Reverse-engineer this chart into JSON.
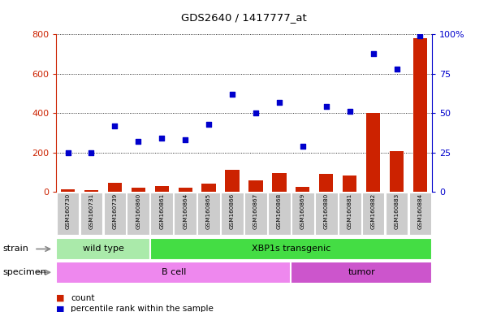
{
  "title": "GDS2640 / 1417777_at",
  "samples": [
    "GSM160730",
    "GSM160731",
    "GSM160739",
    "GSM160860",
    "GSM160861",
    "GSM160864",
    "GSM160865",
    "GSM160866",
    "GSM160867",
    "GSM160868",
    "GSM160869",
    "GSM160880",
    "GSM160881",
    "GSM160882",
    "GSM160883",
    "GSM160884"
  ],
  "counts": [
    15,
    10,
    45,
    20,
    30,
    20,
    40,
    110,
    60,
    95,
    25,
    90,
    85,
    400,
    205,
    780
  ],
  "percentiles": [
    25,
    25,
    42,
    32,
    34,
    33,
    43,
    62,
    50,
    57,
    29,
    54,
    51,
    88,
    78,
    99
  ],
  "strain_groups": [
    {
      "label": "wild type",
      "start": 0,
      "end": 4,
      "color": "#aaeaaa"
    },
    {
      "label": "XBP1s transgenic",
      "start": 4,
      "end": 16,
      "color": "#44dd44"
    }
  ],
  "specimen_groups": [
    {
      "label": "B cell",
      "start": 0,
      "end": 10,
      "color": "#ee88ee"
    },
    {
      "label": "tumor",
      "start": 10,
      "end": 16,
      "color": "#cc55cc"
    }
  ],
  "bar_color": "#cc2200",
  "dot_color": "#0000cc",
  "left_axis_color": "#cc2200",
  "right_axis_color": "#0000cc",
  "ylim_left": [
    0,
    800
  ],
  "ylim_right": [
    0,
    100
  ],
  "yticks_left": [
    0,
    200,
    400,
    600,
    800
  ],
  "yticks_right": [
    0,
    25,
    50,
    75,
    100
  ],
  "background_color": "#ffffff",
  "grid_color": "#000000",
  "legend_count_label": "count",
  "legend_pct_label": "percentile rank within the sample"
}
